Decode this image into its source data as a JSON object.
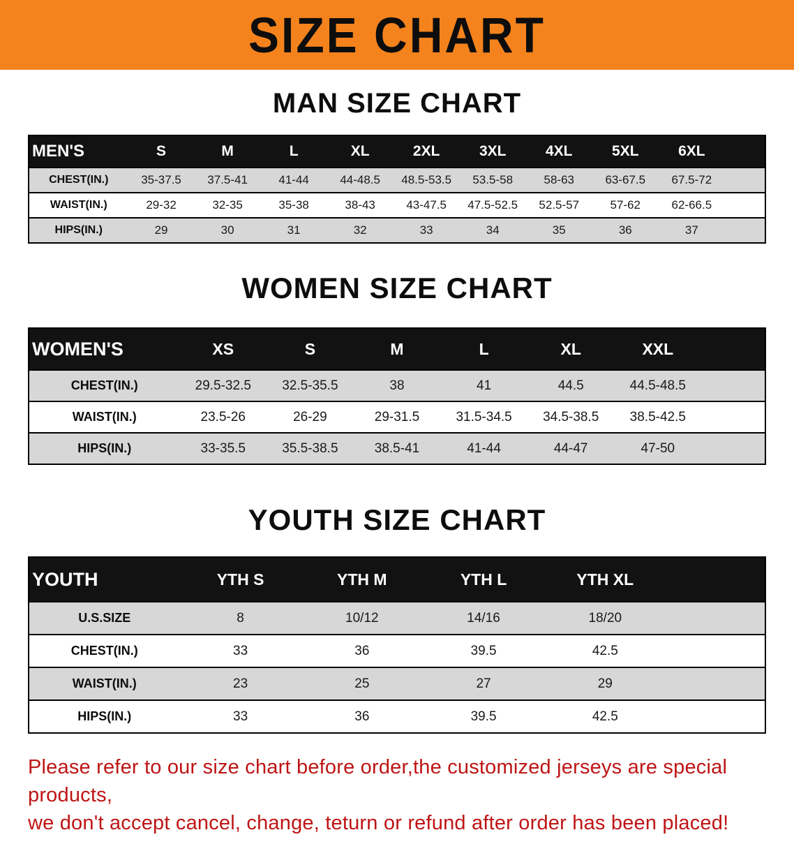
{
  "banner": {
    "title": "SIZE CHART"
  },
  "colors": {
    "banner_bg": "#F5831D",
    "header_bg": "#121212",
    "row_alt_bg": "#D7D7D7",
    "note_red": "#BE1515"
  },
  "sections": [
    {
      "heading": "MAN SIZE CHART",
      "table": {
        "corner_label": "MEN'S",
        "columns": [
          "S",
          "M",
          "L",
          "XL",
          "2XL",
          "3XL",
          "4XL",
          "5XL",
          "6XL"
        ],
        "rows": [
          {
            "label": "CHEST(IN.)",
            "values": [
              "35-37.5",
              "37.5-41",
              "41-44",
              "44-48.5",
              "48.5-53.5",
              "53.5-58",
              "58-63",
              "63-67.5",
              "67.5-72"
            ]
          },
          {
            "label": "WAIST(IN.)",
            "values": [
              "29-32",
              "32-35",
              "35-38",
              "38-43",
              "43-47.5",
              "47.5-52.5",
              "52.5-57",
              "57-62",
              "62-66.5"
            ]
          },
          {
            "label": "HIPS(IN.)",
            "values": [
              "29",
              "30",
              "31",
              "32",
              "33",
              "34",
              "35",
              "36",
              "37"
            ]
          }
        ]
      }
    },
    {
      "heading": "WOMEN SIZE CHART",
      "table": {
        "corner_label": "WOMEN'S",
        "columns": [
          "XS",
          "S",
          "M",
          "L",
          "XL",
          "XXL"
        ],
        "rows": [
          {
            "label": "CHEST(IN.)",
            "values": [
              "29.5-32.5",
              "32.5-35.5",
              "38",
              "41",
              "44.5",
              "44.5-48.5"
            ]
          },
          {
            "label": "WAIST(IN.)",
            "values": [
              "23.5-26",
              "26-29",
              "29-31.5",
              "31.5-34.5",
              "34.5-38.5",
              "38.5-42.5"
            ]
          },
          {
            "label": "HIPS(IN.)",
            "values": [
              "33-35.5",
              "35.5-38.5",
              "38.5-41",
              "41-44",
              "44-47",
              "47-50"
            ]
          }
        ]
      }
    },
    {
      "heading": "YOUTH SIZE CHART",
      "table": {
        "corner_label": "YOUTH",
        "columns": [
          "YTH S",
          "YTH M",
          "YTH L",
          "YTH XL"
        ],
        "rows": [
          {
            "label": "U.S.SIZE",
            "values": [
              "8",
              "10/12",
              "14/16",
              "18/20"
            ]
          },
          {
            "label": "CHEST(IN.)",
            "values": [
              "33",
              "36",
              "39.5",
              "42.5"
            ]
          },
          {
            "label": "WAIST(IN.)",
            "values": [
              "23",
              "25",
              "27",
              "29"
            ]
          },
          {
            "label": "HIPS(IN.)",
            "values": [
              "33",
              "36",
              "39.5",
              "42.5"
            ]
          }
        ]
      }
    }
  ],
  "note": {
    "line1": "Please refer to our size chart before order,the customized jerseys are special products,",
    "line2": "we don't accept cancel, change, teturn or refund after order has been placed!"
  }
}
